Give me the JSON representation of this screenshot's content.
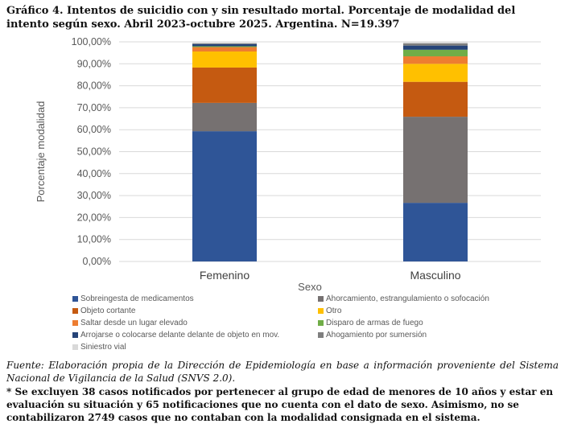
{
  "title": "Gráfico 4. Intentos de suicidio con y sin resultado mortal. Porcentaje de modalidad del intento según sexo. Abril 2023-octubre 2025. Argentina. N=19.397",
  "source": "Fuente: Elaboración propia de la Dirección de Epidemiología en base a información proveniente del Sistema Nacional de Vigilancia de la Salud (SNVS 2.0).",
  "note": "* Se excluyen 38 casos notificados por pertenecer al grupo de edad de menores de 10 años y estar en evaluación su situación y 65 notificaciones que no cuenta con el dato de sexo. Asimismo, no se contabilizaron 2749 casos que no contaban con la modalidad consignada en el sistema.",
  "chart_data": {
    "type": "bar",
    "stacked": true,
    "xlabel": "Sexo",
    "ylabel": "Porcentaje modalidad",
    "ylim": [
      0,
      100
    ],
    "yticks": [
      "0,00%",
      "10,00%",
      "20,00%",
      "30,00%",
      "40,00%",
      "50,00%",
      "60,00%",
      "70,00%",
      "80,00%",
      "90,00%",
      "100,00%"
    ],
    "grid": true,
    "legend_position": "bottom",
    "categories": [
      "Femenino",
      "Masculino"
    ],
    "series": [
      {
        "name": "Sobreingesta de medicamentos",
        "color": "#2f5597",
        "values": [
          59.3,
          26.7
        ]
      },
      {
        "name": "Ahorcamiento, estrangulamiento o sofocación",
        "color": "#767171",
        "values": [
          12.9,
          39.2
        ]
      },
      {
        "name": "Objeto cortante",
        "color": "#c55a11",
        "values": [
          16.1,
          15.9
        ]
      },
      {
        "name": "Otro",
        "color": "#ffc000",
        "values": [
          7.3,
          8.2
        ]
      },
      {
        "name": "Saltar desde un lugar elevado",
        "color": "#ed7d31",
        "values": [
          2.0,
          3.4
        ]
      },
      {
        "name": "Disparo de armas de fuego",
        "color": "#70ad47",
        "values": [
          0.4,
          3.0
        ]
      },
      {
        "name": "Arrojarse o colocarse delante delante de objeto en mov.",
        "color": "#264478",
        "values": [
          1.0,
          1.9
        ]
      },
      {
        "name": "Ahogamiento por sumersión",
        "color": "#7f7f7f",
        "values": [
          0.3,
          1.0
        ]
      },
      {
        "name": "Siniestro vial",
        "color": "#d9d9d9",
        "values": [
          0.4,
          0.5
        ]
      }
    ]
  }
}
